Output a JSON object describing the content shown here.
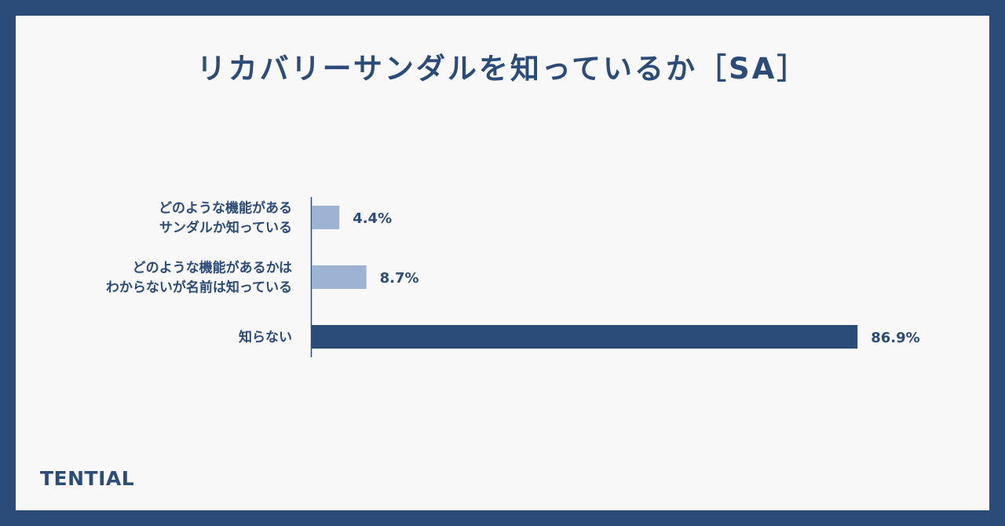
{
  "title": "リカバリーサンダルを知っているか［SA］",
  "brand": "TENTIAL",
  "colors": {
    "frame": "#2b4b78",
    "background": "#f8f8f8",
    "bar_highlight": "#2b4b78",
    "bar_muted": "#9db3d4",
    "text": "#2b4b78"
  },
  "chart_data": {
    "type": "bar",
    "orientation": "horizontal",
    "title": "リカバリーサンダルを知っているか［SA］",
    "categories": [
      [
        "どのような機能がある",
        "サンダルか知っている"
      ],
      [
        "どのような機能があるかは",
        "わからないが名前は知っている"
      ],
      [
        "知らない"
      ]
    ],
    "values": [
      4.4,
      8.7,
      86.9
    ],
    "value_labels": [
      "4.4%",
      "8.7%",
      "86.9%"
    ],
    "unit": "%",
    "xlim": [
      0,
      100
    ],
    "bar_colors": [
      "#9db3d4",
      "#9db3d4",
      "#2b4b78"
    ],
    "grid": false,
    "legend": "none"
  }
}
